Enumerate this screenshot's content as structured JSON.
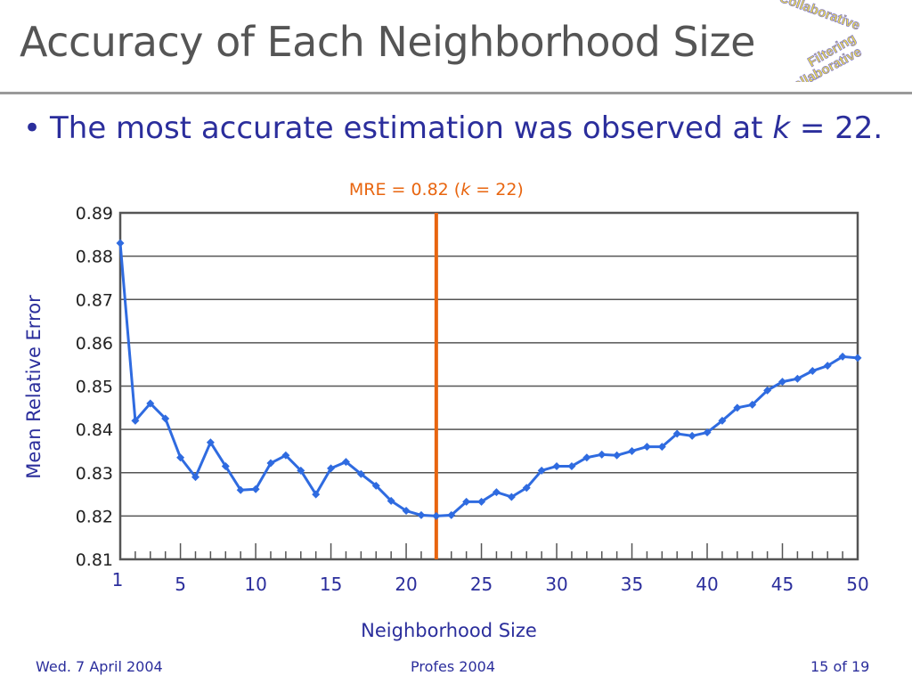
{
  "slide": {
    "title": "Accuracy of Each Neighborhood Size",
    "bullet_text": "The most accurate estimation was observed at",
    "bullet_k": "k",
    "bullet_tail": " = 22.",
    "logo_text": "Collaborative Filtering",
    "footer_left": "Wed. 7 April 2004",
    "footer_center": "Profes 2004",
    "footer_right": "15 of 19"
  },
  "chart_data": {
    "type": "line",
    "title": "",
    "xlabel": "Neighborhood Size",
    "ylabel": "Mean Relative Error",
    "xlim": [
      1,
      50
    ],
    "ylim": [
      0.81,
      0.89
    ],
    "x_ticks": [
      1,
      5,
      10,
      15,
      20,
      25,
      30,
      35,
      40,
      45,
      50
    ],
    "y_ticks": [
      "0.81",
      "0.82",
      "0.83",
      "0.84",
      "0.85",
      "0.86",
      "0.87",
      "0.88",
      "0.89"
    ],
    "grid": true,
    "series": [
      {
        "color": "#2f6be0",
        "x": [
          1,
          2,
          3,
          4,
          5,
          6,
          7,
          8,
          9,
          10,
          11,
          12,
          13,
          14,
          15,
          16,
          17,
          18,
          19,
          20,
          21,
          22,
          23,
          24,
          25,
          26,
          27,
          28,
          29,
          30,
          31,
          32,
          33,
          34,
          35,
          36,
          37,
          38,
          39,
          40,
          41,
          42,
          43,
          44,
          45,
          46,
          47,
          48,
          49,
          50
        ],
        "values": [
          0.883,
          0.842,
          0.846,
          0.8425,
          0.8335,
          0.829,
          0.837,
          0.8315,
          0.826,
          0.8262,
          0.8322,
          0.834,
          0.8305,
          0.825,
          0.831,
          0.8325,
          0.8297,
          0.827,
          0.8235,
          0.8212,
          0.8202,
          0.82,
          0.8202,
          0.8233,
          0.8233,
          0.8255,
          0.8244,
          0.8265,
          0.8305,
          0.8315,
          0.8315,
          0.8335,
          0.8342,
          0.834,
          0.835,
          0.836,
          0.836,
          0.839,
          0.8385,
          0.8393,
          0.842,
          0.845,
          0.8457,
          0.849,
          0.851,
          0.8517,
          0.8535,
          0.8547,
          0.8568,
          0.8565
        ]
      }
    ],
    "annotation": {
      "x": 22,
      "color": "#e8650f",
      "label_prefix": "MRE = 0.82 (",
      "label_k": "k",
      "label_suffix": " = 22)"
    }
  }
}
